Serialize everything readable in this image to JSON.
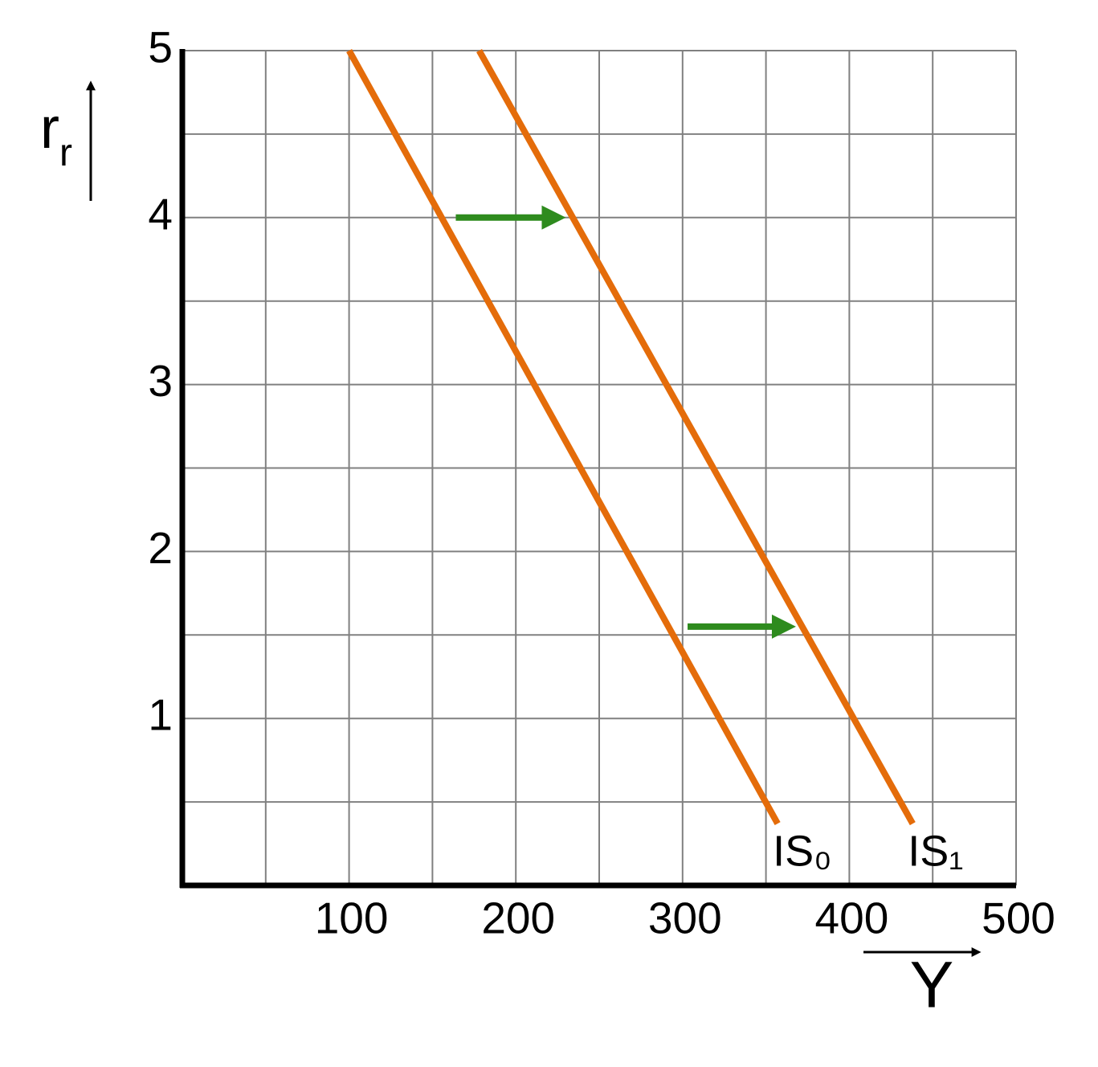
{
  "chart_data": {
    "type": "line",
    "ylabel": {
      "text": "r",
      "sub": "r"
    },
    "xlabel": "Y",
    "xlim": [
      0,
      500
    ],
    "ylim": [
      0,
      5
    ],
    "xticks": [
      100,
      200,
      300,
      400,
      500
    ],
    "yticks": [
      1,
      2,
      3,
      4,
      5
    ],
    "minor_xticks": [
      50,
      150,
      250,
      350,
      450
    ],
    "minor_yticks": [
      0.5,
      1.5,
      2.5,
      3.5,
      4.5
    ],
    "grid": true,
    "series": [
      {
        "name": "IS₀",
        "color": "#e46c0a",
        "x": [
          100,
          357
        ],
        "values": [
          5,
          0.37
        ]
      },
      {
        "name": "IS₁",
        "color": "#e46c0a",
        "x": [
          178,
          438
        ],
        "values": [
          5,
          0.37
        ]
      }
    ],
    "arrows": [
      {
        "color": "#2e8b1e",
        "x": [
          164,
          230
        ],
        "y": 4
      },
      {
        "color": "#2e8b1e",
        "x": [
          303,
          368
        ],
        "y": 1.55
      }
    ]
  }
}
